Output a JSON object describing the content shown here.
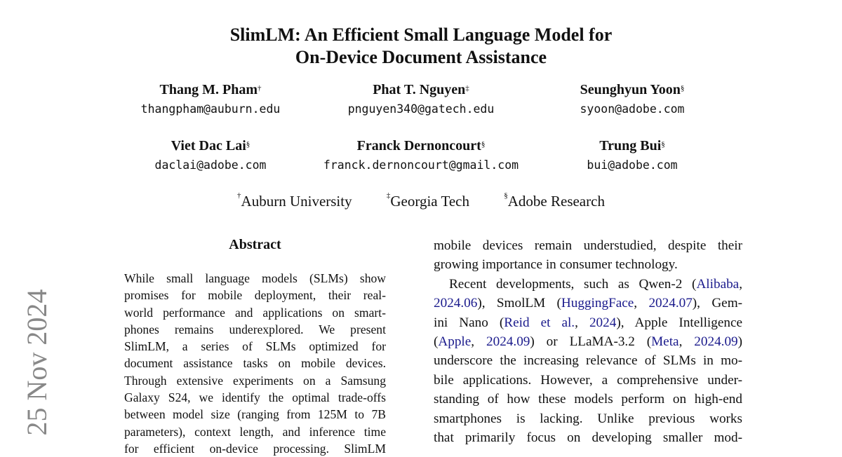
{
  "title": [
    "SlimLM: An Efficient Small Language Model for",
    "On-Device Document Assistance"
  ],
  "authors": [
    {
      "name": "Thang M. Pham",
      "mark": "†",
      "email": "thangpham@auburn.edu"
    },
    {
      "name": "Phat T. Nguyen",
      "mark": "‡",
      "email": "pnguyen340@gatech.edu"
    },
    {
      "name": "Seunghyun Yoon",
      "mark": "§",
      "email": "syoon@adobe.com"
    },
    {
      "name": "Viet Dac Lai",
      "mark": "§",
      "email": "daclai@adobe.com"
    },
    {
      "name": "Franck Dernoncourt",
      "mark": "§",
      "email": "franck.dernoncourt@gmail.com"
    },
    {
      "name": "Trung Bui",
      "mark": "§",
      "email": "bui@adobe.com"
    }
  ],
  "affiliations": [
    {
      "mark": "†",
      "name": "Auburn University"
    },
    {
      "mark": "‡",
      "name": "Georgia Tech"
    },
    {
      "mark": "§",
      "name": "Adobe Research"
    }
  ],
  "abstract": {
    "heading": "Abstract",
    "lines": [
      "While small language models (SLMs) show",
      "promises for mobile deployment, their real-",
      "world performance and applications on smart-",
      "phones remains underexplored.  We present",
      "SlimLM, a series of SLMs optimized for",
      "document assistance tasks on mobile devices.",
      "Through extensive experiments on a Samsung",
      "Galaxy S24, we identify the optimal trade-offs",
      "between model size (ranging from 125M to 7B",
      "parameters), context length, and inference time",
      "for efficient on-device processing.  SlimLM"
    ]
  },
  "intro": {
    "line1": "mobile devices remain understudied, despite their",
    "line2": "growing importance in consumer technology.",
    "p2": {
      "l1a": "Recent developments, such as Qwen-2 (",
      "l1c": "Alibaba",
      "l1d": ",",
      "l2a": "2024.06",
      "l2b": "), SmolLM (",
      "l2c": "HuggingFace",
      "l2d": ", ",
      "l2e": "2024.07",
      "l2f": "), Gem-",
      "l3a": "ini Nano (",
      "l3b": "Reid et al.",
      "l3c": ", ",
      "l3d": "2024",
      "l3e": "), Apple Intelligence",
      "l4a": "(",
      "l4b": "Apple",
      "l4c": ", ",
      "l4d": "2024.09",
      "l4e": ") or LLaMA-3.2 (",
      "l4f": "Meta",
      "l4g": ", ",
      "l4h": "2024.09",
      "l4i": ")",
      "l5": "underscore the increasing relevance of SLMs in mo-",
      "l6": "bile applications. However, a comprehensive under-",
      "l7": "standing of how these models perform on high-end",
      "l8": "smartphones is lacking.  Unlike previous works",
      "l9": "that primarily focus on developing smaller mod-"
    }
  },
  "arxiv_stamp": "25 Nov 2024",
  "colors": {
    "citation": "#1a1a8c",
    "stamp": "#888888"
  }
}
